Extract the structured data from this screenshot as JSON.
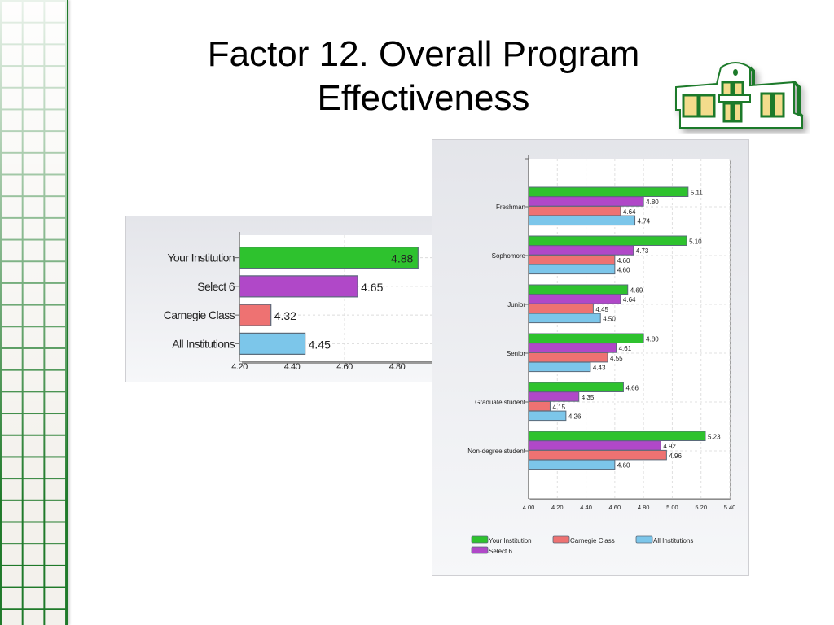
{
  "slide": {
    "title_line1": "Factor 12. Overall Program",
    "title_line2": "Effectiveness",
    "logo_icon": "campus-building-logo",
    "theme_colors": {
      "grid_green": "#1f7a2a",
      "accent_gold": "#f0d890"
    }
  },
  "chart_data": [
    {
      "type": "bar",
      "orientation": "horizontal",
      "title": "",
      "xlabel": "",
      "ylabel": "",
      "categories": [
        "Your Institution",
        "Select 6",
        "Carnegie Class",
        "All Institutions"
      ],
      "values": [
        4.88,
        4.65,
        4.32,
        4.45
      ],
      "value_labels": [
        "4.88",
        "4.65",
        "4.32",
        "4.45"
      ],
      "colors": [
        "#2ec22e",
        "#b048c8",
        "#ee7272",
        "#7cc6ea"
      ],
      "xlim": [
        4.2,
        5.0
      ],
      "xticks": [
        "4.20",
        "4.40",
        "4.60",
        "4.80",
        "5.00"
      ],
      "grid": true,
      "legend": "none"
    },
    {
      "type": "bar",
      "orientation": "horizontal",
      "title": "",
      "xlabel": "",
      "ylabel": "",
      "categories": [
        "Freshman",
        "Sophomore",
        "Junior",
        "Senior",
        "Graduate student",
        "Non-degree student"
      ],
      "series": [
        {
          "name": "Your Institution",
          "color": "#2ec22e",
          "values": [
            5.11,
            5.1,
            4.69,
            4.8,
            4.66,
            5.23
          ],
          "labels": [
            "5.11",
            "5.10",
            "4.69",
            "4.80",
            "4.66",
            "5.23"
          ]
        },
        {
          "name": "Select 6",
          "color": "#b048c8",
          "values": [
            4.8,
            4.73,
            4.64,
            4.61,
            4.35,
            4.92
          ],
          "labels": [
            "4.80",
            "4.73",
            "4.64",
            "4.61",
            "4.35",
            "4.92"
          ]
        },
        {
          "name": "Carnegie Class",
          "color": "#ee7272",
          "values": [
            4.64,
            4.6,
            4.45,
            4.55,
            4.15,
            4.96
          ],
          "labels": [
            "4.64",
            "4.60",
            "4.45",
            "4.55",
            "4.15",
            "4.96"
          ]
        },
        {
          "name": "All Institutions",
          "color": "#7cc6ea",
          "values": [
            4.74,
            4.6,
            4.5,
            4.43,
            4.26,
            4.6
          ],
          "labels": [
            "4.74",
            "4.60",
            "4.50",
            "4.43",
            "4.26",
            "4.60"
          ]
        }
      ],
      "xlim": [
        4.0,
        5.4
      ],
      "xticks": [
        "4.00",
        "4.20",
        "4.40",
        "4.60",
        "4.80",
        "5.00",
        "5.20",
        "5.40"
      ],
      "grid": true,
      "legend": "bottom",
      "legend_order": [
        "Your Institution",
        "Carnegie Class",
        "All Institutions",
        "Select 6"
      ]
    }
  ]
}
